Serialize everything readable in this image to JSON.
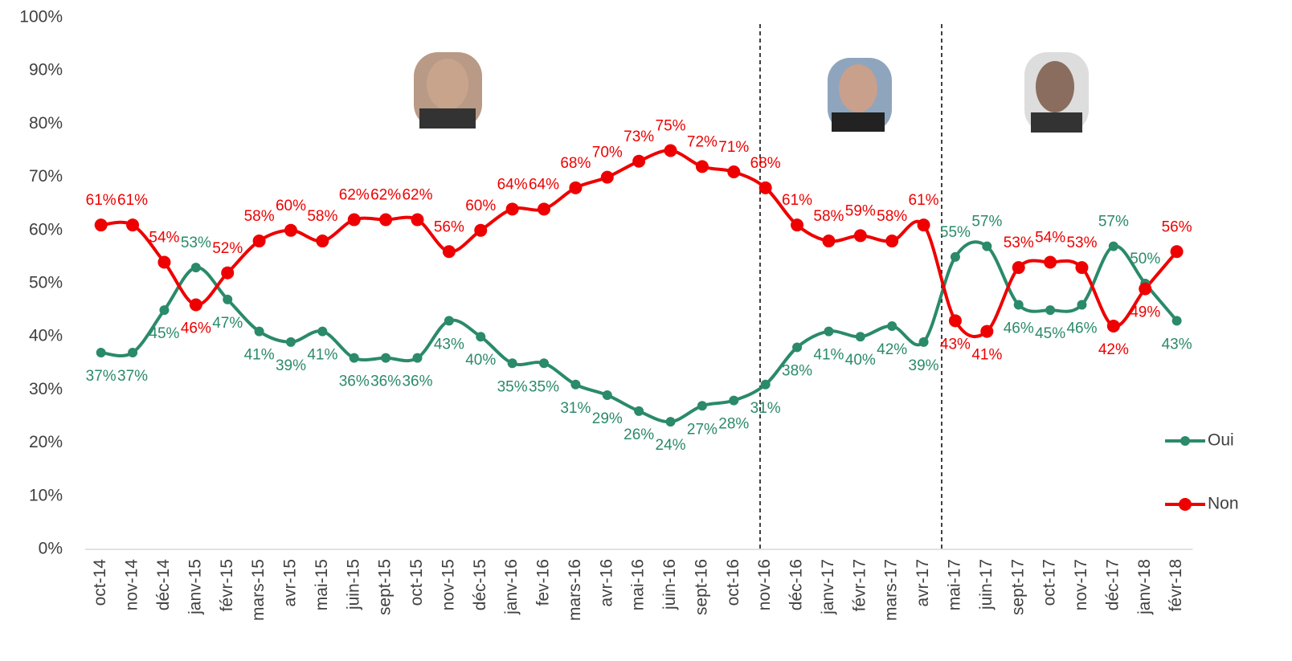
{
  "chart_data": {
    "type": "line",
    "categories": [
      "oct-14",
      "nov-14",
      "déc-14",
      "janv-15",
      "févr-15",
      "mars-15",
      "avr-15",
      "mai-15",
      "juin-15",
      "sept-15",
      "oct-15",
      "nov-15",
      "déc-15",
      "janv-16",
      "fev-16",
      "mars-16",
      "avr-16",
      "mai-16",
      "juin-16",
      "sept-16",
      "oct-16",
      "nov-16",
      "déc-16",
      "janv-17",
      "févr-17",
      "mars-17",
      "avr-17",
      "mai-17",
      "juin-17",
      "sept-17",
      "oct-17",
      "nov-17",
      "déc-17",
      "janv-18",
      "févr-18"
    ],
    "series": [
      {
        "name": "Oui",
        "color": "#2a8a6a",
        "values": [
          37,
          37,
          45,
          53,
          47,
          41,
          39,
          41,
          36,
          36,
          36,
          43,
          40,
          35,
          35,
          31,
          29,
          26,
          24,
          27,
          28,
          31,
          38,
          41,
          40,
          42,
          39,
          55,
          57,
          46,
          45,
          46,
          57,
          50,
          43
        ],
        "value_labels": [
          "37%",
          "37%",
          "45%",
          "53%",
          "47%",
          "41%",
          "39%",
          "41%",
          "36%",
          "36%",
          "36%",
          "43%",
          "40%",
          "35%",
          "35%",
          "31%",
          "29%",
          "26%",
          "24%",
          "27%",
          "28%",
          "31%",
          "38%",
          "41%",
          "40%",
          "42%",
          "39%",
          "55%",
          "57%",
          "46%",
          "45%",
          "46%",
          "57%",
          "50%",
          "43%"
        ]
      },
      {
        "name": "Non",
        "color": "#ee0000",
        "values": [
          61,
          61,
          54,
          46,
          52,
          58,
          60,
          58,
          62,
          62,
          62,
          56,
          60,
          64,
          64,
          68,
          70,
          73,
          75,
          72,
          71,
          68,
          61,
          58,
          59,
          58,
          61,
          43,
          41,
          53,
          54,
          53,
          42,
          49,
          56
        ],
        "value_labels": [
          "61%",
          "61%",
          "54%",
          "46%",
          "52%",
          "58%",
          "60%",
          "58%",
          "62%",
          "62%",
          "62%",
          "56%",
          "60%",
          "64%",
          "64%",
          "68%",
          "70%",
          "73%",
          "75%",
          "72%",
          "71%",
          "68%",
          "61%",
          "58%",
          "59%",
          "58%",
          "61%",
          "43%",
          "41%",
          "53%",
          "54%",
          "53%",
          "42%",
          "49%",
          "56%"
        ]
      }
    ],
    "ylim": [
      0,
      100
    ],
    "yticks": [
      {
        "value": 0,
        "label": "0%"
      },
      {
        "value": 10,
        "label": "10%"
      },
      {
        "value": 20,
        "label": "20%"
      },
      {
        "value": 30,
        "label": "30%"
      },
      {
        "value": 40,
        "label": "40%"
      },
      {
        "value": 50,
        "label": "50%"
      },
      {
        "value": 60,
        "label": "60%"
      },
      {
        "value": 70,
        "label": "70%"
      },
      {
        "value": 80,
        "label": "80%"
      },
      {
        "value": 90,
        "label": "90%"
      },
      {
        "value": 100,
        "label": "100%"
      }
    ],
    "grid": false,
    "legend": "right"
  }
}
